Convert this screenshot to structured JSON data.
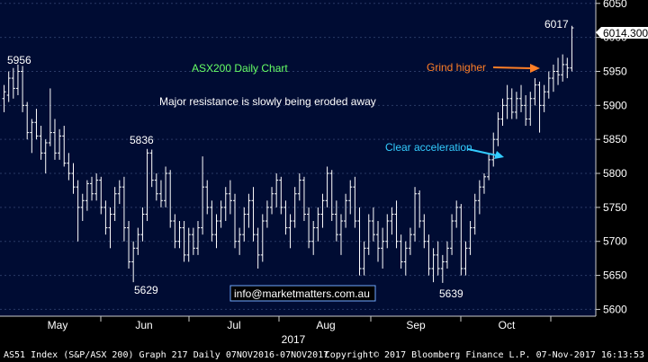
{
  "chart_data": {
    "type": "bar",
    "subtype": "ohlc",
    "title": "ASX200 Daily Chart",
    "subtitle": "Major resistance is slowly being eroded away",
    "y_axis": {
      "position": "right",
      "range": [
        5590,
        6055
      ],
      "ticks": [
        5600,
        5650,
        5700,
        5750,
        5800,
        5850,
        5900,
        5950,
        6000,
        6050
      ]
    },
    "x_axis": {
      "months": [
        "May",
        "Jun",
        "Jul",
        "Aug",
        "Sep",
        "Oct"
      ],
      "year_label": "2017"
    },
    "last_price": "6014.300",
    "peak_labels": [
      "5956",
      "5836",
      "5629",
      "5639",
      "6017"
    ],
    "annotations": [
      {
        "text": "Clear acceleration",
        "color": "#33ccff"
      },
      {
        "text": "Grind higher",
        "color": "#ff7f27"
      }
    ],
    "watermark": "info@marketmatters.com.au",
    "series": [
      {
        "values": [
          [
            5910,
            5930,
            5890,
            5920
          ],
          [
            5915,
            5950,
            5905,
            5940
          ],
          [
            5940,
            5955,
            5910,
            5925
          ],
          [
            5925,
            5960,
            5915,
            5950
          ],
          [
            5950,
            5958,
            5890,
            5900
          ],
          [
            5900,
            5905,
            5850,
            5860
          ],
          [
            5860,
            5880,
            5830,
            5875
          ],
          [
            5875,
            5895,
            5850,
            5855
          ],
          [
            5855,
            5870,
            5820,
            5830
          ],
          [
            5830,
            5850,
            5800,
            5845
          ],
          [
            5845,
            5925,
            5840,
            5860
          ],
          [
            5860,
            5880,
            5820,
            5830
          ],
          [
            5830,
            5865,
            5820,
            5855
          ],
          [
            5855,
            5870,
            5810,
            5815
          ],
          [
            5815,
            5830,
            5790,
            5800
          ],
          [
            5800,
            5815,
            5770,
            5780
          ],
          [
            5780,
            5790,
            5700,
            5750
          ],
          [
            5750,
            5770,
            5730,
            5760
          ],
          [
            5760,
            5790,
            5745,
            5785
          ],
          [
            5785,
            5795,
            5760,
            5770
          ],
          [
            5770,
            5800,
            5760,
            5790
          ],
          [
            5790,
            5795,
            5740,
            5750
          ],
          [
            5750,
            5760,
            5710,
            5720
          ],
          [
            5720,
            5750,
            5690,
            5740
          ],
          [
            5740,
            5780,
            5730,
            5770
          ],
          [
            5770,
            5790,
            5755,
            5780
          ],
          [
            5780,
            5795,
            5700,
            5720
          ],
          [
            5720,
            5730,
            5660,
            5670
          ],
          [
            5670,
            5700,
            5640,
            5690
          ],
          [
            5690,
            5720,
            5680,
            5710
          ],
          [
            5710,
            5750,
            5700,
            5740
          ],
          [
            5740,
            5836,
            5730,
            5830
          ],
          [
            5830,
            5835,
            5780,
            5790
          ],
          [
            5790,
            5800,
            5760,
            5770
          ],
          [
            5770,
            5790,
            5750,
            5760
          ],
          [
            5760,
            5810,
            5750,
            5800
          ],
          [
            5800,
            5805,
            5720,
            5730
          ],
          [
            5730,
            5740,
            5690,
            5700
          ],
          [
            5700,
            5730,
            5690,
            5720
          ],
          [
            5720,
            5730,
            5670,
            5680
          ],
          [
            5680,
            5720,
            5670,
            5710
          ],
          [
            5710,
            5720,
            5680,
            5690
          ],
          [
            5690,
            5730,
            5680,
            5720
          ],
          [
            5720,
            5825,
            5710,
            5780
          ],
          [
            5780,
            5790,
            5740,
            5750
          ],
          [
            5750,
            5760,
            5700,
            5710
          ],
          [
            5710,
            5740,
            5690,
            5730
          ],
          [
            5730,
            5760,
            5720,
            5750
          ],
          [
            5750,
            5780,
            5730,
            5770
          ],
          [
            5770,
            5790,
            5740,
            5760
          ],
          [
            5760,
            5770,
            5690,
            5700
          ],
          [
            5700,
            5720,
            5680,
            5710
          ],
          [
            5710,
            5750,
            5700,
            5740
          ],
          [
            5740,
            5770,
            5720,
            5760
          ],
          [
            5760,
            5780,
            5700,
            5710
          ],
          [
            5710,
            5720,
            5660,
            5680
          ],
          [
            5680,
            5740,
            5670,
            5730
          ],
          [
            5730,
            5760,
            5720,
            5750
          ],
          [
            5750,
            5780,
            5740,
            5770
          ],
          [
            5770,
            5800,
            5750,
            5790
          ],
          [
            5790,
            5795,
            5740,
            5750
          ],
          [
            5750,
            5760,
            5710,
            5720
          ],
          [
            5720,
            5740,
            5690,
            5730
          ],
          [
            5730,
            5780,
            5720,
            5770
          ],
          [
            5770,
            5800,
            5760,
            5790
          ],
          [
            5790,
            5795,
            5730,
            5740
          ],
          [
            5740,
            5750,
            5690,
            5700
          ],
          [
            5700,
            5730,
            5680,
            5720
          ],
          [
            5720,
            5750,
            5700,
            5740
          ],
          [
            5740,
            5770,
            5720,
            5760
          ],
          [
            5760,
            5810,
            5750,
            5800
          ],
          [
            5800,
            5805,
            5730,
            5740
          ],
          [
            5740,
            5760,
            5700,
            5710
          ],
          [
            5710,
            5740,
            5680,
            5730
          ],
          [
            5730,
            5770,
            5720,
            5760
          ],
          [
            5760,
            5790,
            5740,
            5780
          ],
          [
            5780,
            5795,
            5720,
            5730
          ],
          [
            5730,
            5750,
            5650,
            5660
          ],
          [
            5660,
            5700,
            5650,
            5690
          ],
          [
            5690,
            5740,
            5680,
            5730
          ],
          [
            5730,
            5750,
            5700,
            5710
          ],
          [
            5710,
            5730,
            5670,
            5690
          ],
          [
            5690,
            5720,
            5660,
            5700
          ],
          [
            5700,
            5740,
            5690,
            5730
          ],
          [
            5730,
            5750,
            5710,
            5740
          ],
          [
            5740,
            5760,
            5690,
            5700
          ],
          [
            5700,
            5710,
            5660,
            5670
          ],
          [
            5670,
            5700,
            5650,
            5690
          ],
          [
            5690,
            5720,
            5680,
            5710
          ],
          [
            5710,
            5780,
            5700,
            5770
          ],
          [
            5770,
            5775,
            5720,
            5730
          ],
          [
            5730,
            5740,
            5690,
            5700
          ],
          [
            5700,
            5710,
            5650,
            5660
          ],
          [
            5660,
            5690,
            5640,
            5680
          ],
          [
            5680,
            5700,
            5650,
            5660
          ],
          [
            5660,
            5680,
            5639,
            5670
          ],
          [
            5670,
            5700,
            5660,
            5690
          ],
          [
            5690,
            5740,
            5680,
            5730
          ],
          [
            5730,
            5760,
            5720,
            5750
          ],
          [
            5750,
            5755,
            5650,
            5660
          ],
          [
            5660,
            5700,
            5650,
            5690
          ],
          [
            5690,
            5730,
            5680,
            5720
          ],
          [
            5720,
            5770,
            5710,
            5760
          ],
          [
            5760,
            5790,
            5740,
            5780
          ],
          [
            5780,
            5800,
            5770,
            5795
          ],
          [
            5795,
            5830,
            5790,
            5820
          ],
          [
            5820,
            5860,
            5810,
            5850
          ],
          [
            5850,
            5890,
            5840,
            5880
          ],
          [
            5880,
            5910,
            5870,
            5900
          ],
          [
            5900,
            5930,
            5880,
            5910
          ],
          [
            5910,
            5925,
            5880,
            5890
          ],
          [
            5890,
            5920,
            5880,
            5910
          ],
          [
            5910,
            5930,
            5890,
            5900
          ],
          [
            5900,
            5915,
            5870,
            5880
          ],
          [
            5880,
            5920,
            5870,
            5910
          ],
          [
            5910,
            5940,
            5900,
            5930
          ],
          [
            5930,
            5935,
            5860,
            5900
          ],
          [
            5900,
            5930,
            5890,
            5920
          ],
          [
            5920,
            5950,
            5910,
            5940
          ],
          [
            5940,
            5960,
            5920,
            5950
          ],
          [
            5950,
            5970,
            5930,
            5945
          ],
          [
            5945,
            5975,
            5935,
            5960
          ],
          [
            5960,
            5970,
            5940,
            5955
          ],
          [
            5955,
            6017,
            5950,
            6014
          ]
        ]
      }
    ]
  },
  "footer": {
    "left": "AS51 Index (S&P/ASX 200) Graph 217  Daily 07NOV2016-07NOV2017",
    "right": "Copyright© 2017 Bloomberg Finance L.P.    07-Nov-2017 16:13:53"
  },
  "colors": {
    "background": "#000000",
    "plot_background": "#000c33",
    "bars": "#ffffff",
    "title": "#66ff66",
    "clear_acceleration": "#33ccff",
    "grind_higher": "#ff7f27",
    "watermark_text": "#ffffff",
    "watermark_border": "#6fa8ff"
  }
}
